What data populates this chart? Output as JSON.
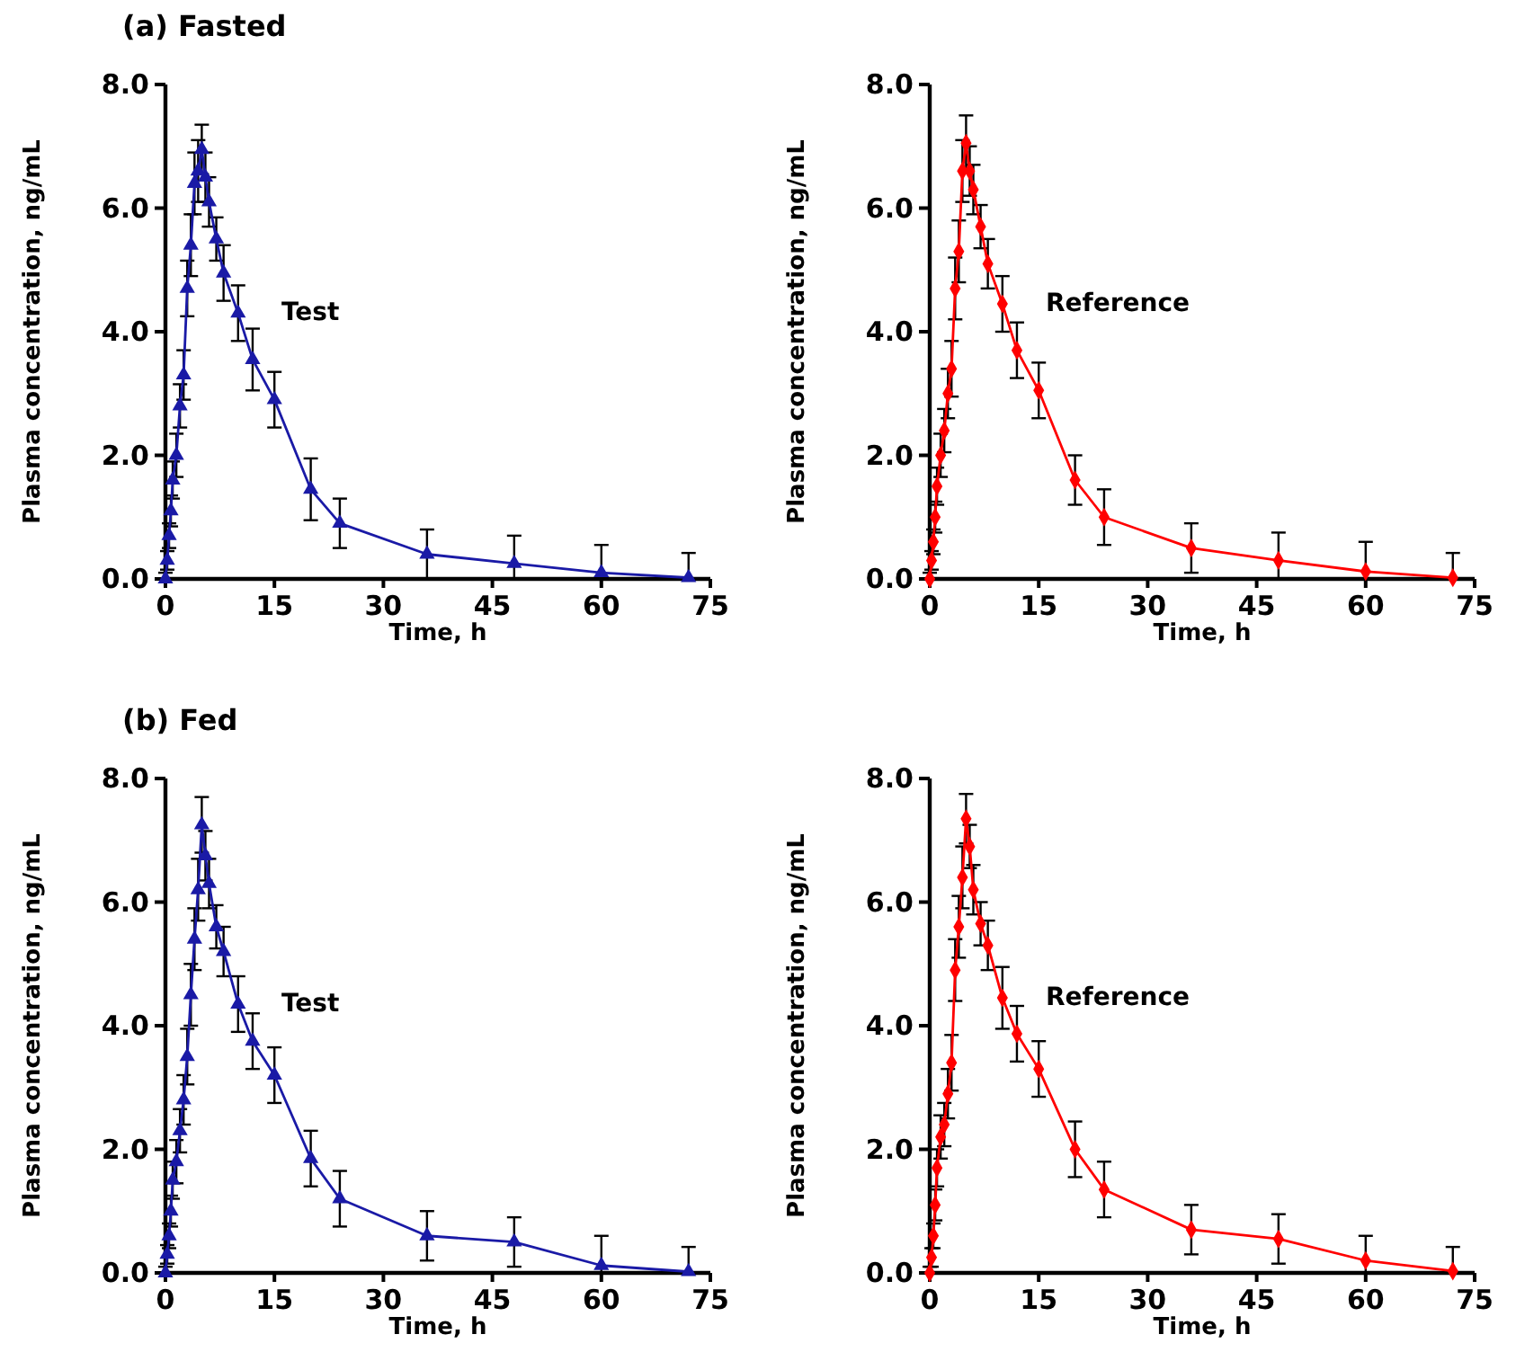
{
  "chart_data": [
    {
      "type": "line",
      "title": "(a) Fasted",
      "xlabel": "Time, h",
      "ylabel": "Plasma concentration, ng/mL",
      "xlim": [
        0,
        75
      ],
      "xticks": [
        0,
        15,
        30,
        45,
        60,
        75
      ],
      "ylim": [
        0,
        8
      ],
      "yticks": [
        {
          "value": 0,
          "label": "0.0"
        },
        {
          "value": 2,
          "label": "2.0"
        },
        {
          "value": 4,
          "label": "4.0"
        },
        {
          "value": 6,
          "label": "6.0"
        },
        {
          "value": 8,
          "label": "8.0"
        }
      ],
      "grid": false,
      "legend": false,
      "x": [
        0,
        0.25,
        0.5,
        0.75,
        1,
        1.5,
        2,
        2.5,
        3,
        3.5,
        4,
        4.5,
        5,
        5.5,
        6,
        7,
        8,
        10,
        12,
        15,
        20,
        24,
        36,
        48,
        60,
        72
      ],
      "series": [
        {
          "name": "Test",
          "color": "#1a1aa6",
          "marker": "triangle",
          "values": [
            0,
            0.3,
            0.7,
            1.1,
            1.6,
            2.0,
            2.8,
            3.3,
            4.7,
            5.4,
            6.4,
            6.6,
            6.95,
            6.5,
            6.1,
            5.5,
            4.95,
            4.3,
            3.55,
            2.9,
            1.45,
            0.9,
            0.4,
            0.25,
            0.1,
            0.02
          ],
          "errors": [
            [
              0,
              0.1
            ],
            0.15,
            0.2,
            0.25,
            0.3,
            0.35,
            0.35,
            0.4,
            0.45,
            0.5,
            0.5,
            0.5,
            0.4,
            0.4,
            0.4,
            0.35,
            0.45,
            0.45,
            0.5,
            0.45,
            0.5,
            0.4,
            0.4,
            [
              0,
              0.7
            ],
            [
              0,
              0.55
            ],
            [
              0,
              0.42
            ]
          ]
        }
      ]
    },
    {
      "type": "line",
      "xlabel": "Time, h",
      "ylabel": "Plasma concentration, ng/mL",
      "xlim": [
        0,
        75
      ],
      "xticks": [
        0,
        15,
        30,
        45,
        60,
        75
      ],
      "ylim": [
        0,
        8
      ],
      "yticks": [
        {
          "value": 0,
          "label": "0.0"
        },
        {
          "value": 2,
          "label": "2.0"
        },
        {
          "value": 4,
          "label": "4.0"
        },
        {
          "value": 6,
          "label": "6.0"
        },
        {
          "value": 8,
          "label": "8.0"
        }
      ],
      "grid": false,
      "legend": false,
      "x": [
        0,
        0.25,
        0.5,
        0.75,
        1,
        1.5,
        2,
        2.5,
        3,
        3.5,
        4,
        4.5,
        5,
        5.5,
        6,
        7,
        8,
        10,
        12,
        15,
        20,
        24,
        36,
        48,
        60,
        72
      ],
      "series": [
        {
          "name": "Reference",
          "color": "#ff0000",
          "marker": "diamond",
          "values": [
            0,
            0.3,
            0.6,
            1.0,
            1.5,
            2.0,
            2.4,
            3.0,
            3.4,
            4.7,
            5.3,
            6.6,
            7.05,
            6.6,
            6.3,
            5.7,
            5.1,
            4.45,
            3.7,
            3.05,
            1.6,
            1.0,
            0.5,
            0.3,
            0.12,
            0.02
          ],
          "errors": [
            [
              0,
              0.1
            ],
            0.15,
            0.2,
            0.25,
            0.3,
            0.35,
            0.35,
            0.4,
            0.45,
            0.5,
            0.5,
            0.5,
            0.45,
            0.4,
            0.4,
            0.35,
            0.4,
            0.45,
            0.45,
            0.45,
            0.4,
            0.45,
            0.4,
            [
              0,
              0.75
            ],
            [
              0,
              0.6
            ],
            [
              0,
              0.42
            ]
          ]
        }
      ]
    },
    {
      "type": "line",
      "title": "(b) Fed",
      "xlabel": "Time, h",
      "ylabel": "Plasma concentration, ng/mL",
      "xlim": [
        0,
        75
      ],
      "xticks": [
        0,
        15,
        30,
        45,
        60,
        75
      ],
      "ylim": [
        0,
        8
      ],
      "yticks": [
        {
          "value": 0,
          "label": "0.0"
        },
        {
          "value": 2,
          "label": "2.0"
        },
        {
          "value": 4,
          "label": "4.0"
        },
        {
          "value": 6,
          "label": "6.0"
        },
        {
          "value": 8,
          "label": "8.0"
        }
      ],
      "grid": false,
      "legend": false,
      "x": [
        0,
        0.25,
        0.5,
        0.75,
        1,
        1.5,
        2,
        2.5,
        3,
        3.5,
        4,
        4.5,
        5,
        5.5,
        6,
        7,
        8,
        10,
        12,
        15,
        20,
        24,
        36,
        48,
        60,
        72
      ],
      "series": [
        {
          "name": "Test",
          "color": "#1a1aa6",
          "marker": "triangle",
          "values": [
            0,
            0.3,
            0.6,
            1.0,
            1.5,
            1.8,
            2.3,
            2.8,
            3.5,
            4.5,
            5.4,
            6.2,
            7.25,
            6.75,
            6.3,
            5.6,
            5.2,
            4.35,
            3.75,
            3.2,
            1.85,
            1.2,
            0.6,
            0.5,
            0.12,
            0.02
          ],
          "errors": [
            [
              0,
              0.1
            ],
            0.15,
            0.2,
            0.25,
            0.3,
            0.35,
            0.35,
            0.4,
            0.45,
            0.5,
            0.5,
            0.5,
            0.45,
            0.4,
            0.4,
            0.35,
            0.4,
            0.45,
            0.45,
            0.45,
            0.45,
            0.45,
            0.4,
            0.4,
            [
              0,
              0.6
            ],
            [
              0,
              0.42
            ]
          ]
        }
      ]
    },
    {
      "type": "line",
      "xlabel": "Time, h",
      "ylabel": "Plasma concentration, ng/mL",
      "xlim": [
        0,
        75
      ],
      "xticks": [
        0,
        15,
        30,
        45,
        60,
        75
      ],
      "ylim": [
        0,
        8
      ],
      "yticks": [
        {
          "value": 0,
          "label": "0.0"
        },
        {
          "value": 2,
          "label": "2.0"
        },
        {
          "value": 4,
          "label": "4.0"
        },
        {
          "value": 6,
          "label": "6.0"
        },
        {
          "value": 8,
          "label": "8.0"
        }
      ],
      "grid": false,
      "legend": false,
      "x": [
        0,
        0.25,
        0.5,
        0.75,
        1,
        1.5,
        2,
        2.5,
        3,
        3.5,
        4,
        4.5,
        5,
        5.5,
        6,
        7,
        8,
        10,
        12,
        15,
        20,
        24,
        36,
        48,
        60,
        72
      ],
      "series": [
        {
          "name": "Reference",
          "color": "#ff0000",
          "marker": "diamond",
          "values": [
            0,
            0.25,
            0.6,
            1.1,
            1.7,
            2.2,
            2.4,
            2.9,
            3.4,
            4.9,
            5.6,
            6.4,
            7.35,
            6.9,
            6.2,
            5.65,
            5.3,
            4.45,
            3.87,
            3.3,
            2.0,
            1.35,
            0.7,
            0.55,
            0.2,
            0.03
          ],
          "errors": [
            [
              0,
              0.1
            ],
            0.15,
            0.2,
            0.25,
            0.3,
            0.35,
            0.35,
            0.4,
            0.45,
            0.5,
            0.5,
            0.5,
            0.4,
            0.35,
            0.4,
            0.35,
            0.4,
            0.5,
            0.45,
            0.45,
            0.45,
            0.45,
            0.4,
            0.4,
            [
              0,
              0.6
            ],
            [
              0,
              0.42
            ]
          ]
        }
      ]
    }
  ]
}
